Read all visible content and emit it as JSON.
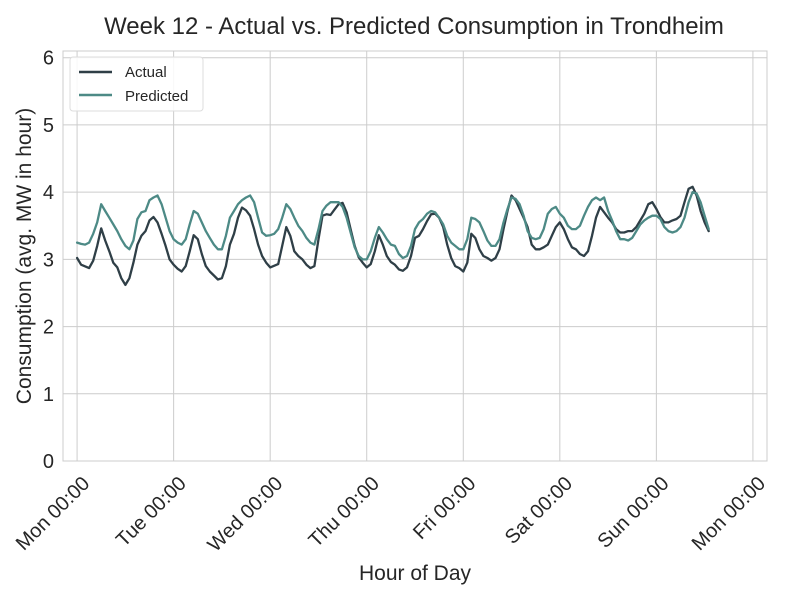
{
  "chart_data": {
    "type": "line",
    "title": "Week 12 - Actual vs. Predicted Consumption in Trondheim",
    "xlabel": "Hour of Day",
    "ylabel": "Consumption (avg. MW in hour)",
    "ylim": [
      0,
      6.1
    ],
    "xlim": [
      -3.5,
      171.5
    ],
    "yticks": [
      0,
      1,
      2,
      3,
      4,
      5,
      6
    ],
    "xticks": [
      {
        "hour": 0,
        "label": "Mon 00:00"
      },
      {
        "hour": 24,
        "label": "Tue 00:00"
      },
      {
        "hour": 48,
        "label": "Wed 00:00"
      },
      {
        "hour": 72,
        "label": "Thu 00:00"
      },
      {
        "hour": 96,
        "label": "Fri 00:00"
      },
      {
        "hour": 120,
        "label": "Sat 00:00"
      },
      {
        "hour": 144,
        "label": "Sun 00:00"
      },
      {
        "hour": 168,
        "label": "Mon 00:00"
      }
    ],
    "grid": true,
    "legend_position": "top-left",
    "series": [
      {
        "name": "Actual",
        "color": "#2f3f47",
        "points": [
          [
            0,
            3.02
          ],
          [
            1,
            2.92
          ],
          [
            3,
            2.87
          ],
          [
            4,
            2.98
          ],
          [
            5,
            3.2
          ],
          [
            6,
            3.46
          ],
          [
            7,
            3.28
          ],
          [
            8,
            3.12
          ],
          [
            9,
            2.95
          ],
          [
            10,
            2.88
          ],
          [
            11,
            2.72
          ],
          [
            12,
            2.62
          ],
          [
            13,
            2.72
          ],
          [
            14,
            2.95
          ],
          [
            15,
            3.22
          ],
          [
            16,
            3.35
          ],
          [
            17,
            3.42
          ],
          [
            18,
            3.58
          ],
          [
            19,
            3.63
          ],
          [
            20,
            3.55
          ],
          [
            21,
            3.38
          ],
          [
            22,
            3.2
          ],
          [
            23,
            3.0
          ],
          [
            24,
            2.92
          ],
          [
            25,
            2.86
          ],
          [
            26,
            2.82
          ],
          [
            27,
            2.9
          ],
          [
            28,
            3.12
          ],
          [
            29,
            3.36
          ],
          [
            30,
            3.3
          ],
          [
            31,
            3.08
          ],
          [
            32,
            2.9
          ],
          [
            33,
            2.82
          ],
          [
            34,
            2.76
          ],
          [
            35,
            2.7
          ],
          [
            36,
            2.72
          ],
          [
            37,
            2.9
          ],
          [
            38,
            3.22
          ],
          [
            39,
            3.38
          ],
          [
            40,
            3.62
          ],
          [
            41,
            3.77
          ],
          [
            42,
            3.73
          ],
          [
            43,
            3.65
          ],
          [
            44,
            3.45
          ],
          [
            45,
            3.22
          ],
          [
            46,
            3.05
          ],
          [
            47,
            2.95
          ],
          [
            48,
            2.88
          ],
          [
            50,
            2.93
          ],
          [
            51,
            3.2
          ],
          [
            52,
            3.48
          ],
          [
            53,
            3.35
          ],
          [
            54,
            3.12
          ],
          [
            55,
            3.05
          ],
          [
            56,
            3.0
          ],
          [
            57,
            2.92
          ],
          [
            58,
            2.87
          ],
          [
            59,
            2.9
          ],
          [
            60,
            3.3
          ],
          [
            61,
            3.65
          ],
          [
            62,
            3.67
          ],
          [
            63,
            3.66
          ],
          [
            64,
            3.74
          ],
          [
            65,
            3.82
          ],
          [
            66,
            3.84
          ],
          [
            67,
            3.7
          ],
          [
            68,
            3.45
          ],
          [
            69,
            3.2
          ],
          [
            70,
            3.03
          ],
          [
            71,
            2.95
          ],
          [
            72,
            2.88
          ],
          [
            73,
            2.93
          ],
          [
            74,
            3.12
          ],
          [
            75,
            3.36
          ],
          [
            76,
            3.22
          ],
          [
            77,
            3.05
          ],
          [
            78,
            2.96
          ],
          [
            79,
            2.92
          ],
          [
            80,
            2.85
          ],
          [
            81,
            2.83
          ],
          [
            82,
            2.88
          ],
          [
            83,
            3.05
          ],
          [
            84,
            3.32
          ],
          [
            85,
            3.35
          ],
          [
            86,
            3.45
          ],
          [
            87,
            3.57
          ],
          [
            88,
            3.67
          ],
          [
            89,
            3.68
          ],
          [
            90,
            3.62
          ],
          [
            91,
            3.48
          ],
          [
            92,
            3.22
          ],
          [
            93,
            3.02
          ],
          [
            94,
            2.9
          ],
          [
            95,
            2.87
          ],
          [
            96,
            2.82
          ],
          [
            97,
            2.95
          ],
          [
            98,
            3.38
          ],
          [
            99,
            3.32
          ],
          [
            100,
            3.15
          ],
          [
            101,
            3.05
          ],
          [
            102,
            3.02
          ],
          [
            103,
            2.98
          ],
          [
            104,
            3.02
          ],
          [
            105,
            3.15
          ],
          [
            106,
            3.45
          ],
          [
            107,
            3.72
          ],
          [
            108,
            3.95
          ],
          [
            109,
            3.88
          ],
          [
            110,
            3.75
          ],
          [
            111,
            3.62
          ],
          [
            112,
            3.48
          ],
          [
            113,
            3.22
          ],
          [
            114,
            3.15
          ],
          [
            115,
            3.15
          ],
          [
            116,
            3.18
          ],
          [
            117,
            3.22
          ],
          [
            118,
            3.35
          ],
          [
            119,
            3.48
          ],
          [
            120,
            3.55
          ],
          [
            121,
            3.45
          ],
          [
            122,
            3.3
          ],
          [
            123,
            3.18
          ],
          [
            124,
            3.15
          ],
          [
            125,
            3.08
          ],
          [
            126,
            3.05
          ],
          [
            127,
            3.12
          ],
          [
            128,
            3.35
          ],
          [
            129,
            3.62
          ],
          [
            130,
            3.78
          ],
          [
            131,
            3.7
          ],
          [
            132,
            3.62
          ],
          [
            133,
            3.55
          ],
          [
            134,
            3.45
          ],
          [
            135,
            3.4
          ],
          [
            136,
            3.4
          ],
          [
            137,
            3.42
          ],
          [
            138,
            3.42
          ],
          [
            139,
            3.48
          ],
          [
            140,
            3.58
          ],
          [
            141,
            3.68
          ],
          [
            142,
            3.82
          ],
          [
            143,
            3.85
          ],
          [
            144,
            3.75
          ],
          [
            145,
            3.63
          ],
          [
            146,
            3.55
          ],
          [
            147,
            3.55
          ],
          [
            148,
            3.58
          ],
          [
            149,
            3.6
          ],
          [
            150,
            3.65
          ],
          [
            151,
            3.85
          ],
          [
            152,
            4.05
          ],
          [
            153,
            4.08
          ],
          [
            154,
            3.95
          ],
          [
            155,
            3.72
          ],
          [
            156,
            3.55
          ],
          [
            157,
            3.42
          ]
        ]
      },
      {
        "name": "Predicted",
        "color": "#4d8a86",
        "points": [
          [
            0,
            3.25
          ],
          [
            1,
            3.23
          ],
          [
            2,
            3.22
          ],
          [
            3,
            3.25
          ],
          [
            4,
            3.38
          ],
          [
            5,
            3.55
          ],
          [
            6,
            3.82
          ],
          [
            7,
            3.72
          ],
          [
            8,
            3.62
          ],
          [
            9,
            3.52
          ],
          [
            10,
            3.42
          ],
          [
            11,
            3.3
          ],
          [
            12,
            3.2
          ],
          [
            13,
            3.15
          ],
          [
            14,
            3.28
          ],
          [
            15,
            3.6
          ],
          [
            16,
            3.7
          ],
          [
            17,
            3.72
          ],
          [
            18,
            3.88
          ],
          [
            19,
            3.92
          ],
          [
            20,
            3.95
          ],
          [
            21,
            3.82
          ],
          [
            22,
            3.62
          ],
          [
            23,
            3.42
          ],
          [
            24,
            3.3
          ],
          [
            25,
            3.25
          ],
          [
            26,
            3.22
          ],
          [
            27,
            3.3
          ],
          [
            28,
            3.52
          ],
          [
            29,
            3.72
          ],
          [
            30,
            3.68
          ],
          [
            31,
            3.55
          ],
          [
            32,
            3.42
          ],
          [
            33,
            3.32
          ],
          [
            34,
            3.22
          ],
          [
            35,
            3.15
          ],
          [
            36,
            3.15
          ],
          [
            37,
            3.35
          ],
          [
            38,
            3.62
          ],
          [
            39,
            3.72
          ],
          [
            40,
            3.82
          ],
          [
            41,
            3.88
          ],
          [
            42,
            3.92
          ],
          [
            43,
            3.95
          ],
          [
            44,
            3.85
          ],
          [
            45,
            3.62
          ],
          [
            46,
            3.4
          ],
          [
            47,
            3.35
          ],
          [
            48,
            3.36
          ],
          [
            49,
            3.38
          ],
          [
            50,
            3.45
          ],
          [
            51,
            3.62
          ],
          [
            52,
            3.82
          ],
          [
            53,
            3.75
          ],
          [
            54,
            3.62
          ],
          [
            55,
            3.5
          ],
          [
            56,
            3.42
          ],
          [
            57,
            3.32
          ],
          [
            58,
            3.25
          ],
          [
            59,
            3.22
          ],
          [
            60,
            3.45
          ],
          [
            61,
            3.72
          ],
          [
            62,
            3.8
          ],
          [
            63,
            3.85
          ],
          [
            64,
            3.85
          ],
          [
            65,
            3.85
          ],
          [
            66,
            3.78
          ],
          [
            67,
            3.62
          ],
          [
            68,
            3.4
          ],
          [
            69,
            3.18
          ],
          [
            70,
            3.05
          ],
          [
            71,
            3.0
          ],
          [
            72,
            3.0
          ],
          [
            73,
            3.12
          ],
          [
            74,
            3.32
          ],
          [
            75,
            3.48
          ],
          [
            76,
            3.4
          ],
          [
            77,
            3.3
          ],
          [
            78,
            3.22
          ],
          [
            79,
            3.2
          ],
          [
            80,
            3.08
          ],
          [
            81,
            3.02
          ],
          [
            82,
            3.05
          ],
          [
            83,
            3.2
          ],
          [
            84,
            3.45
          ],
          [
            85,
            3.55
          ],
          [
            86,
            3.6
          ],
          [
            87,
            3.68
          ],
          [
            88,
            3.72
          ],
          [
            89,
            3.7
          ],
          [
            90,
            3.62
          ],
          [
            91,
            3.52
          ],
          [
            92,
            3.35
          ],
          [
            93,
            3.25
          ],
          [
            94,
            3.2
          ],
          [
            95,
            3.15
          ],
          [
            96,
            3.15
          ],
          [
            97,
            3.3
          ],
          [
            98,
            3.62
          ],
          [
            99,
            3.6
          ],
          [
            100,
            3.55
          ],
          [
            101,
            3.42
          ],
          [
            102,
            3.28
          ],
          [
            103,
            3.2
          ],
          [
            104,
            3.2
          ],
          [
            105,
            3.3
          ],
          [
            106,
            3.55
          ],
          [
            107,
            3.75
          ],
          [
            108,
            3.92
          ],
          [
            109,
            3.9
          ],
          [
            110,
            3.82
          ],
          [
            111,
            3.65
          ],
          [
            112,
            3.42
          ],
          [
            113,
            3.32
          ],
          [
            114,
            3.3
          ],
          [
            115,
            3.32
          ],
          [
            116,
            3.45
          ],
          [
            117,
            3.68
          ],
          [
            118,
            3.75
          ],
          [
            119,
            3.78
          ],
          [
            120,
            3.68
          ],
          [
            121,
            3.62
          ],
          [
            122,
            3.5
          ],
          [
            123,
            3.45
          ],
          [
            124,
            3.45
          ],
          [
            125,
            3.5
          ],
          [
            126,
            3.65
          ],
          [
            127,
            3.78
          ],
          [
            128,
            3.88
          ],
          [
            129,
            3.92
          ],
          [
            130,
            3.88
          ],
          [
            131,
            3.92
          ],
          [
            132,
            3.72
          ],
          [
            133,
            3.58
          ],
          [
            134,
            3.42
          ],
          [
            135,
            3.3
          ],
          [
            136,
            3.3
          ],
          [
            137,
            3.28
          ],
          [
            138,
            3.32
          ],
          [
            139,
            3.42
          ],
          [
            140,
            3.52
          ],
          [
            141,
            3.58
          ],
          [
            142,
            3.62
          ],
          [
            143,
            3.65
          ],
          [
            144,
            3.65
          ],
          [
            145,
            3.6
          ],
          [
            146,
            3.48
          ],
          [
            147,
            3.42
          ],
          [
            148,
            3.4
          ],
          [
            149,
            3.42
          ],
          [
            150,
            3.48
          ],
          [
            151,
            3.62
          ],
          [
            152,
            3.85
          ],
          [
            153,
            4.0
          ],
          [
            154,
            3.98
          ],
          [
            155,
            3.85
          ],
          [
            156,
            3.65
          ],
          [
            157,
            3.45
          ]
        ]
      }
    ]
  }
}
